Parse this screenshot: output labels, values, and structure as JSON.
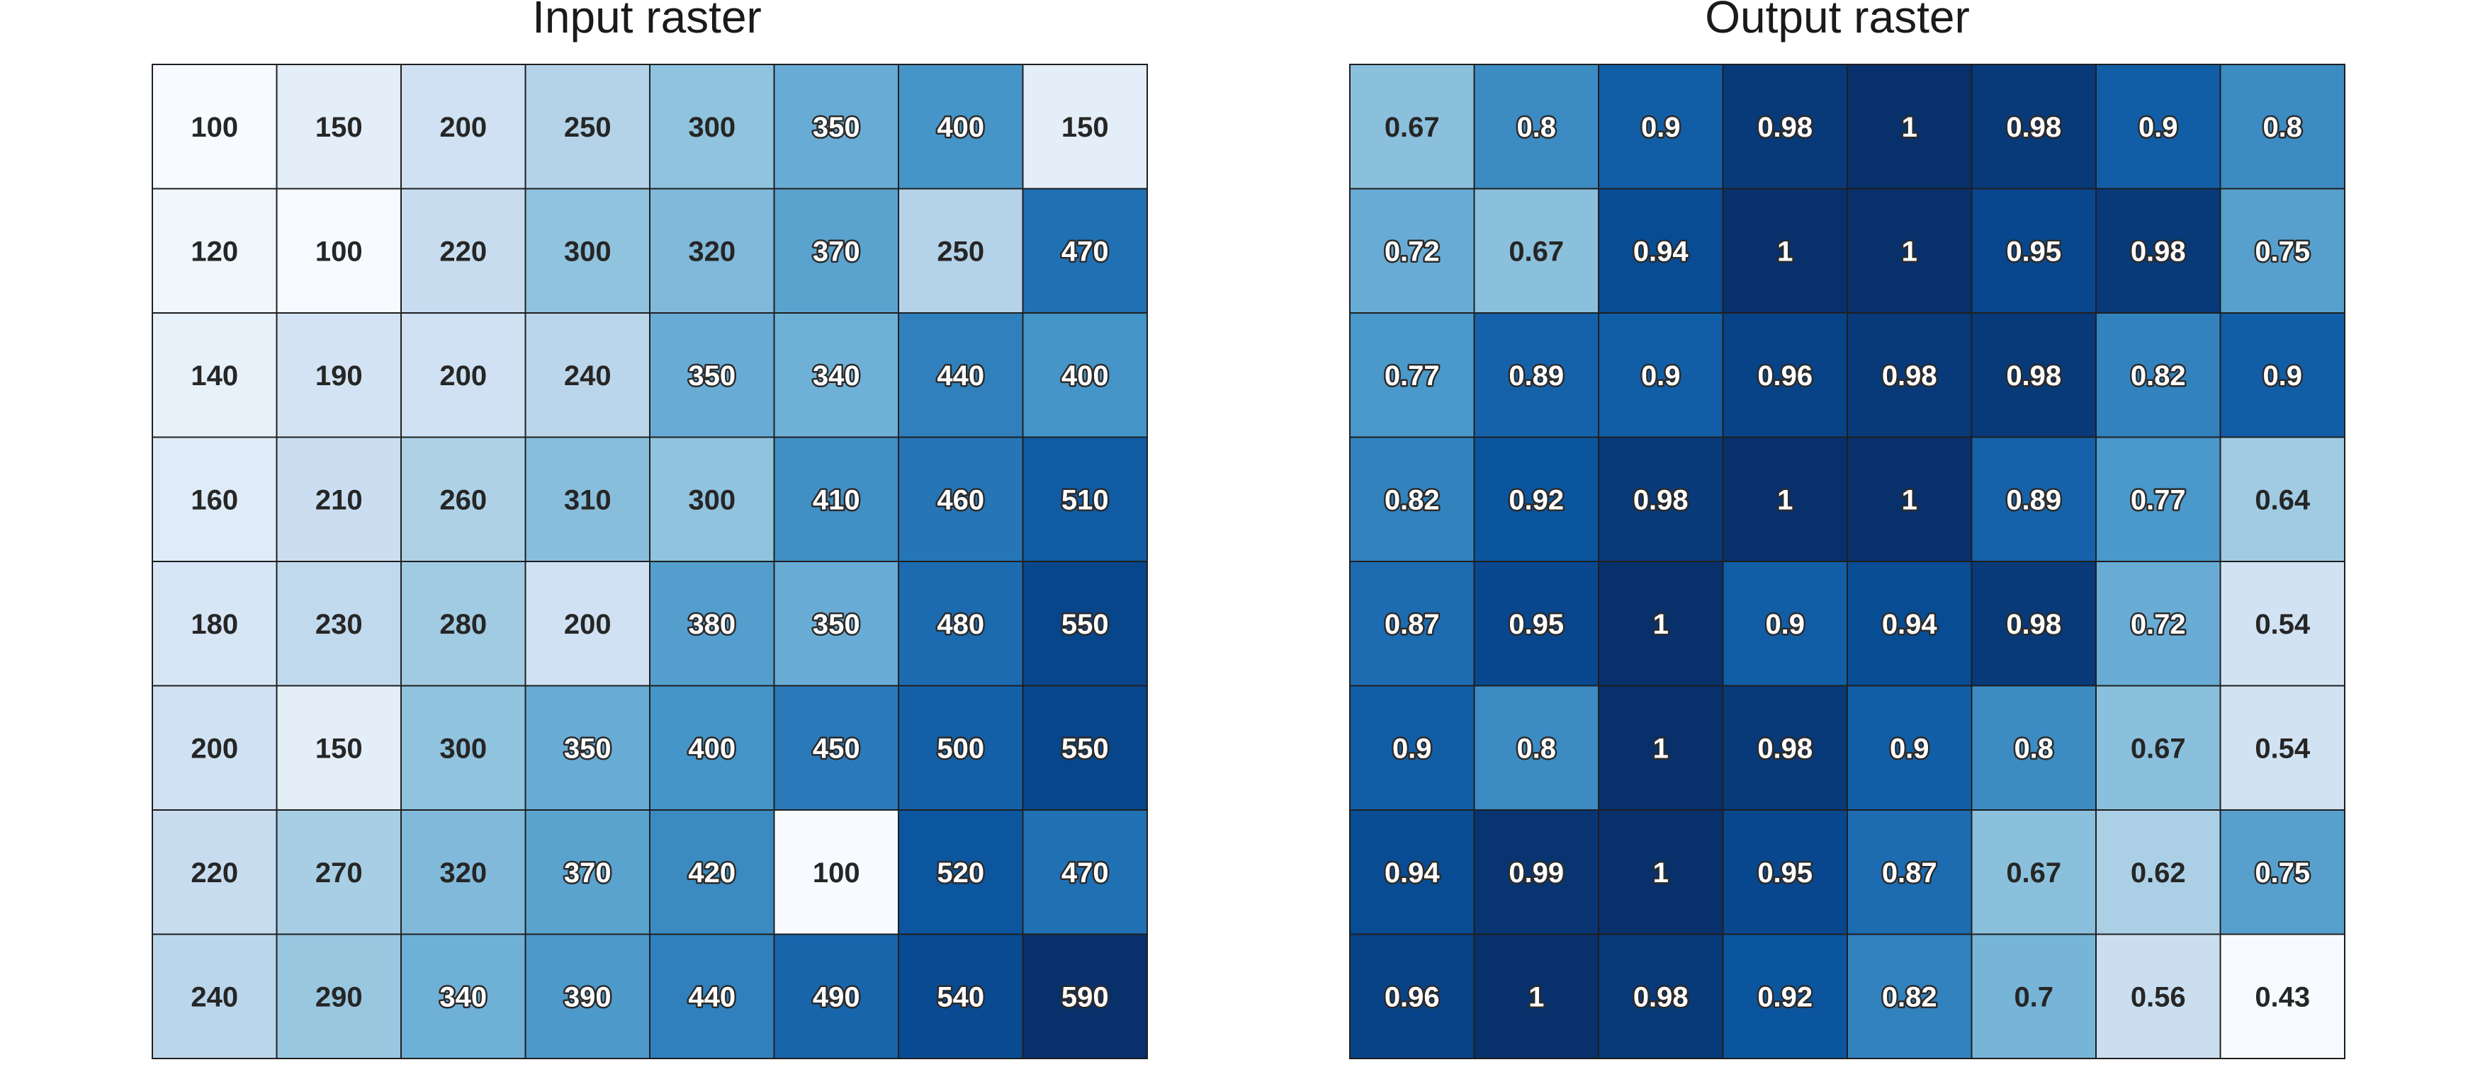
{
  "chart_data": [
    {
      "type": "heatmap",
      "title": "Input raster",
      "colormap": "Blues",
      "rows": 8,
      "cols": 8,
      "values": [
        [
          100,
          150,
          200,
          250,
          300,
          350,
          400,
          150
        ],
        [
          120,
          100,
          220,
          300,
          320,
          370,
          250,
          470
        ],
        [
          140,
          190,
          200,
          240,
          350,
          340,
          440,
          400
        ],
        [
          160,
          210,
          260,
          310,
          300,
          410,
          460,
          510
        ],
        [
          180,
          230,
          280,
          200,
          380,
          350,
          480,
          550
        ],
        [
          200,
          150,
          300,
          350,
          400,
          450,
          500,
          550
        ],
        [
          220,
          270,
          320,
          370,
          420,
          100,
          520,
          470
        ],
        [
          240,
          290,
          340,
          390,
          440,
          490,
          540,
          590
        ]
      ]
    },
    {
      "type": "heatmap",
      "title": "Output raster",
      "colormap": "Blues",
      "rows": 8,
      "cols": 8,
      "values": [
        [
          0.67,
          0.8,
          0.9,
          0.98,
          1,
          0.98,
          0.9,
          0.8
        ],
        [
          0.72,
          0.67,
          0.94,
          1,
          1,
          0.95,
          0.98,
          0.75
        ],
        [
          0.77,
          0.89,
          0.9,
          0.96,
          0.98,
          0.98,
          0.82,
          0.9
        ],
        [
          0.82,
          0.92,
          0.98,
          1,
          1,
          0.89,
          0.77,
          0.64
        ],
        [
          0.87,
          0.95,
          1,
          0.9,
          0.94,
          0.98,
          0.72,
          0.54
        ],
        [
          0.9,
          0.8,
          1,
          0.98,
          0.9,
          0.8,
          0.67,
          0.54
        ],
        [
          0.94,
          0.99,
          1,
          0.95,
          0.87,
          0.67,
          0.62,
          0.75
        ],
        [
          0.96,
          1,
          0.98,
          0.92,
          0.82,
          0.7,
          0.56,
          0.43
        ]
      ]
    }
  ]
}
